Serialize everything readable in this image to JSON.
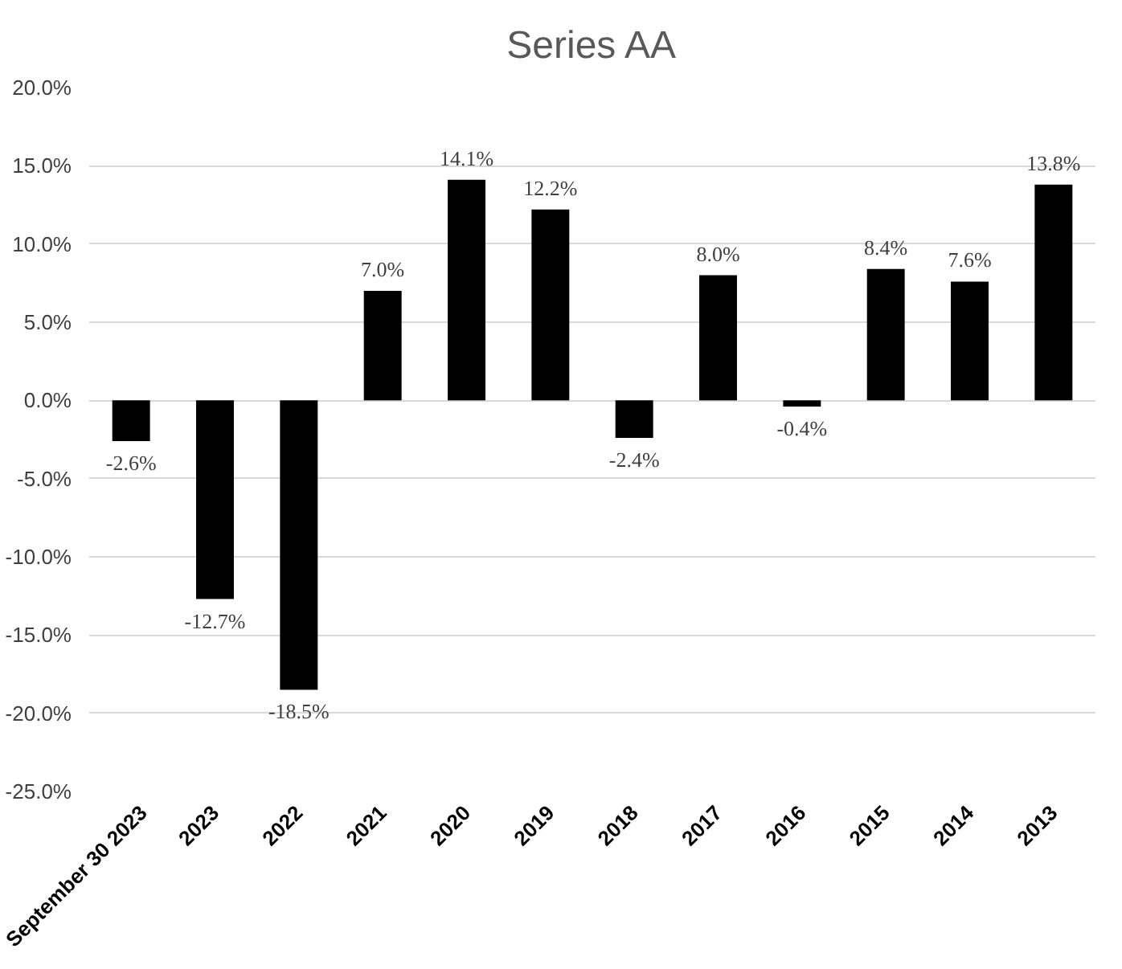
{
  "chart_data": {
    "type": "bar",
    "title": "Series AA",
    "categories": [
      "September 30 2023",
      "2023",
      "2022",
      "2021",
      "2020",
      "2019",
      "2018",
      "2017",
      "2016",
      "2015",
      "2014",
      "2013"
    ],
    "values": [
      -2.6,
      -12.7,
      -18.5,
      7.0,
      14.1,
      12.2,
      -2.4,
      8.0,
      -0.4,
      8.4,
      7.6,
      13.8
    ],
    "value_labels": [
      "-2.6%",
      "-12.7%",
      "-18.5%",
      "7.0%",
      "14.1%",
      "12.2%",
      "-2.4%",
      "8.0%",
      "-0.4%",
      "8.4%",
      "7.6%",
      "13.8%"
    ],
    "color": "#000000",
    "ylim": [
      -25,
      20
    ],
    "yticks": [
      {
        "value": -25,
        "label": "-25.0%"
      },
      {
        "value": -20,
        "label": "-20.0%"
      },
      {
        "value": -15,
        "label": "-15.0%"
      },
      {
        "value": -10,
        "label": "-10.0%"
      },
      {
        "value": -5,
        "label": "-5.0%"
      },
      {
        "value": 0,
        "label": "0.0%"
      },
      {
        "value": 5,
        "label": "5.0%"
      },
      {
        "value": 10,
        "label": "10.0%"
      },
      {
        "value": 15,
        "label": "15.0%"
      },
      {
        "value": 20,
        "label": "20.0%"
      }
    ],
    "grid": "y"
  }
}
